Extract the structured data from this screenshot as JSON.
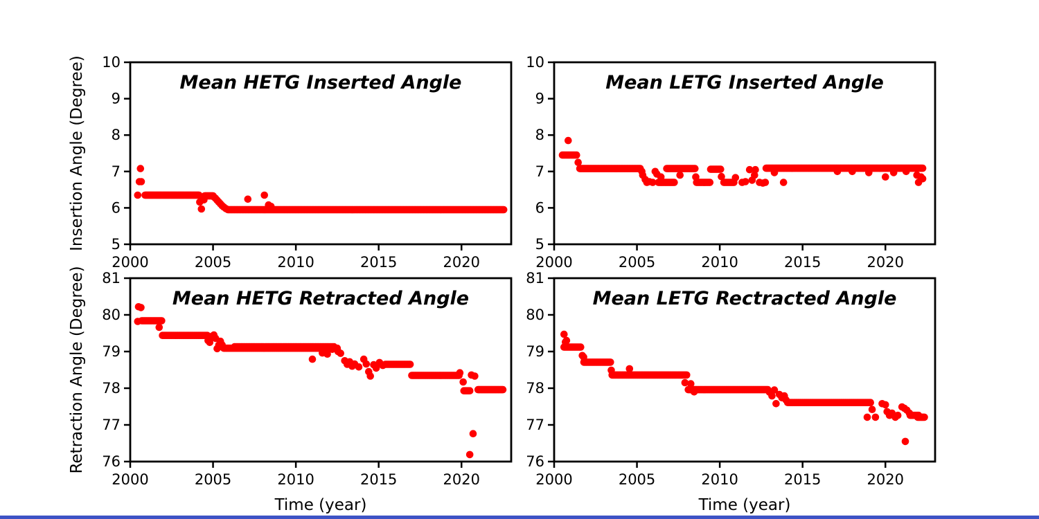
{
  "figure": {
    "background": "#ffffff",
    "axis_color": "#000000",
    "marker_color": "#ff0000",
    "bottom_strip_color": "#3d53c5"
  },
  "chart_data": [
    {
      "id": "mean-hetg-inserted",
      "type": "scatter",
      "title": "Mean HETG Inserted Angle",
      "ylabel": "Insertion Angle (Degree)",
      "xlabel": null,
      "xlim": [
        2000,
        2023
      ],
      "ylim": [
        5,
        10
      ],
      "x_ticks": [
        2000,
        2005,
        2010,
        2015,
        2020
      ],
      "y_ticks": [
        10,
        9,
        8,
        7,
        6,
        5
      ],
      "grid": false,
      "legend": null,
      "marker_color": "#ff0000",
      "runs": [
        [
          2000.9,
          2004.15,
          6.35,
          78
        ],
        [
          2004.5,
          2005.0,
          6.33,
          13
        ],
        [
          2005.9,
          2022.55,
          5.95,
          300
        ]
      ],
      "points": [
        [
          2000.45,
          6.35
        ],
        [
          2000.55,
          6.72
        ],
        [
          2000.67,
          6.72
        ],
        [
          2000.62,
          7.08
        ],
        [
          2004.2,
          6.16
        ],
        [
          2004.3,
          5.97
        ],
        [
          2004.4,
          6.3
        ],
        [
          2004.45,
          6.22
        ],
        [
          2005.05,
          6.3
        ],
        [
          2005.15,
          6.26
        ],
        [
          2005.25,
          6.21
        ],
        [
          2005.35,
          6.16
        ],
        [
          2005.45,
          6.11
        ],
        [
          2005.55,
          6.06
        ],
        [
          2005.65,
          6.02
        ],
        [
          2005.78,
          5.98
        ],
        [
          2007.1,
          6.24
        ],
        [
          2008.1,
          6.35
        ],
        [
          2008.35,
          6.08
        ],
        [
          2008.5,
          6.04
        ]
      ]
    },
    {
      "id": "mean-letg-inserted",
      "type": "scatter",
      "title": "Mean LETG Inserted Angle",
      "ylabel": null,
      "xlabel": null,
      "xlim": [
        2000,
        2023
      ],
      "ylim": [
        5,
        10
      ],
      "x_ticks": [
        2000,
        2005,
        2010,
        2015,
        2020
      ],
      "y_ticks": [
        10,
        9,
        8,
        7,
        6,
        5
      ],
      "grid": false,
      "legend": null,
      "marker_color": "#ff0000",
      "runs": [
        [
          2000.5,
          2001.35,
          7.45,
          11
        ],
        [
          2001.55,
          2005.2,
          7.08,
          65
        ],
        [
          2006.3,
          2007.25,
          6.7,
          15
        ],
        [
          2006.8,
          2008.5,
          7.08,
          28
        ],
        [
          2008.6,
          2009.4,
          6.7,
          13
        ],
        [
          2009.45,
          2010.05,
          7.06,
          9
        ],
        [
          2010.25,
          2010.85,
          6.7,
          9
        ],
        [
          2012.8,
          2022.25,
          7.09,
          170
        ]
      ],
      "points": [
        [
          2000.85,
          7.85
        ],
        [
          2001.45,
          7.25
        ],
        [
          2005.3,
          7.0
        ],
        [
          2005.35,
          6.9
        ],
        [
          2005.5,
          6.78
        ],
        [
          2005.6,
          6.7
        ],
        [
          2005.75,
          6.72
        ],
        [
          2005.95,
          6.7
        ],
        [
          2006.1,
          7.0
        ],
        [
          2006.2,
          6.93
        ],
        [
          2006.45,
          6.85
        ],
        [
          2007.6,
          6.9
        ],
        [
          2008.55,
          6.85
        ],
        [
          2010.1,
          6.86
        ],
        [
          2010.95,
          6.83
        ],
        [
          2011.35,
          6.7
        ],
        [
          2011.55,
          6.72
        ],
        [
          2011.8,
          7.05
        ],
        [
          2011.95,
          6.76
        ],
        [
          2012.1,
          6.9
        ],
        [
          2012.15,
          7.05
        ],
        [
          2012.4,
          6.7
        ],
        [
          2012.6,
          6.68
        ],
        [
          2012.75,
          6.7
        ],
        [
          2013.3,
          6.97
        ],
        [
          2013.85,
          6.7
        ],
        [
          2017.1,
          7.0
        ],
        [
          2018.0,
          7.0
        ],
        [
          2019.0,
          6.97
        ],
        [
          2020.0,
          6.85
        ],
        [
          2020.5,
          6.97
        ],
        [
          2021.25,
          7.0
        ],
        [
          2021.9,
          6.9
        ],
        [
          2022.0,
          6.7
        ],
        [
          2022.15,
          6.85
        ],
        [
          2022.25,
          6.8
        ]
      ]
    },
    {
      "id": "mean-hetg-retracted",
      "type": "scatter",
      "title": "Mean HETG Retracted Angle",
      "ylabel": "Retraction Angle (Degree)",
      "xlabel": "Time (year)",
      "xlim": [
        2000,
        2023
      ],
      "ylim": [
        76,
        81
      ],
      "x_ticks": [
        2000,
        2005,
        2010,
        2015,
        2020
      ],
      "y_ticks": [
        81,
        80,
        79,
        78,
        77,
        76
      ],
      "grid": false,
      "legend": null,
      "marker_color": "#ff0000",
      "runs": [
        [
          2000.7,
          2001.9,
          79.84,
          20
        ],
        [
          2001.95,
          2004.65,
          79.44,
          42
        ],
        [
          2005.65,
          2012.5,
          79.09,
          110
        ],
        [
          2006.3,
          2012.3,
          79.13,
          60
        ],
        [
          2015.4,
          2016.9,
          78.65,
          24
        ],
        [
          2017.0,
          2019.85,
          78.35,
          48
        ],
        [
          2020.15,
          2020.5,
          77.93,
          6
        ],
        [
          2021.0,
          2022.5,
          77.96,
          28
        ]
      ],
      "points": [
        [
          2000.45,
          79.82
        ],
        [
          2000.5,
          80.22
        ],
        [
          2000.65,
          80.2
        ],
        [
          2001.75,
          79.66
        ],
        [
          2004.7,
          79.3
        ],
        [
          2004.8,
          79.25
        ],
        [
          2004.95,
          79.42
        ],
        [
          2005.05,
          79.45
        ],
        [
          2005.15,
          79.36
        ],
        [
          2005.25,
          79.08
        ],
        [
          2005.35,
          79.18
        ],
        [
          2005.45,
          79.28
        ],
        [
          2005.55,
          79.18
        ],
        [
          2011.0,
          78.79
        ],
        [
          2011.6,
          78.96
        ],
        [
          2011.75,
          79.0
        ],
        [
          2011.9,
          78.93
        ],
        [
          2012.2,
          79.06
        ],
        [
          2012.55,
          79.0
        ],
        [
          2012.7,
          78.95
        ],
        [
          2012.95,
          78.75
        ],
        [
          2013.1,
          78.65
        ],
        [
          2013.25,
          78.72
        ],
        [
          2013.4,
          78.6
        ],
        [
          2013.55,
          78.66
        ],
        [
          2013.8,
          78.58
        ],
        [
          2014.1,
          78.79
        ],
        [
          2014.25,
          78.66
        ],
        [
          2014.4,
          78.45
        ],
        [
          2014.5,
          78.33
        ],
        [
          2014.7,
          78.64
        ],
        [
          2014.85,
          78.55
        ],
        [
          2015.05,
          78.7
        ],
        [
          2015.25,
          78.62
        ],
        [
          2019.9,
          78.42
        ],
        [
          2020.1,
          78.17
        ],
        [
          2020.6,
          78.36
        ],
        [
          2020.8,
          78.33
        ],
        [
          2020.5,
          76.19
        ],
        [
          2020.7,
          76.76
        ]
      ]
    },
    {
      "id": "mean-letg-rectracted",
      "type": "scatter",
      "title": "Mean LETG Rectracted Angle",
      "ylabel": null,
      "xlabel": "Time (year)",
      "xlim": [
        2000,
        2023
      ],
      "ylim": [
        76,
        81
      ],
      "x_ticks": [
        2000,
        2005,
        2010,
        2015,
        2020
      ],
      "y_ticks": [
        81,
        80,
        79,
        78,
        77,
        76
      ],
      "grid": false,
      "legend": null,
      "marker_color": "#ff0000",
      "runs": [
        [
          2000.6,
          2001.6,
          79.12,
          15
        ],
        [
          2001.8,
          2003.4,
          78.71,
          26
        ],
        [
          2003.5,
          2008.0,
          78.36,
          68
        ],
        [
          2008.1,
          2012.9,
          77.96,
          75
        ],
        [
          2014.1,
          2019.1,
          77.61,
          80
        ],
        [
          2021.5,
          2022.0,
          77.26,
          8
        ],
        [
          2021.95,
          2022.35,
          77.21,
          8
        ]
      ],
      "points": [
        [
          2000.6,
          79.47
        ],
        [
          2000.68,
          79.26
        ],
        [
          2000.75,
          79.3
        ],
        [
          2001.7,
          78.89
        ],
        [
          2001.78,
          78.85
        ],
        [
          2003.45,
          78.49
        ],
        [
          2004.55,
          78.53
        ],
        [
          2007.9,
          78.15
        ],
        [
          2008.25,
          78.12
        ],
        [
          2008.45,
          77.9
        ],
        [
          2013.0,
          77.89
        ],
        [
          2013.15,
          77.79
        ],
        [
          2013.3,
          77.95
        ],
        [
          2013.4,
          77.58
        ],
        [
          2013.6,
          77.83
        ],
        [
          2013.75,
          77.74
        ],
        [
          2013.9,
          77.79
        ],
        [
          2014.0,
          77.68
        ],
        [
          2018.9,
          77.21
        ],
        [
          2019.2,
          77.42
        ],
        [
          2019.4,
          77.21
        ],
        [
          2019.8,
          77.58
        ],
        [
          2020.0,
          77.55
        ],
        [
          2020.1,
          77.36
        ],
        [
          2020.25,
          77.26
        ],
        [
          2020.4,
          77.32
        ],
        [
          2020.6,
          77.21
        ],
        [
          2020.75,
          77.26
        ],
        [
          2021.0,
          77.49
        ],
        [
          2021.15,
          77.45
        ],
        [
          2021.3,
          77.4
        ],
        [
          2021.45,
          77.32
        ],
        [
          2021.2,
          76.55
        ]
      ]
    }
  ]
}
